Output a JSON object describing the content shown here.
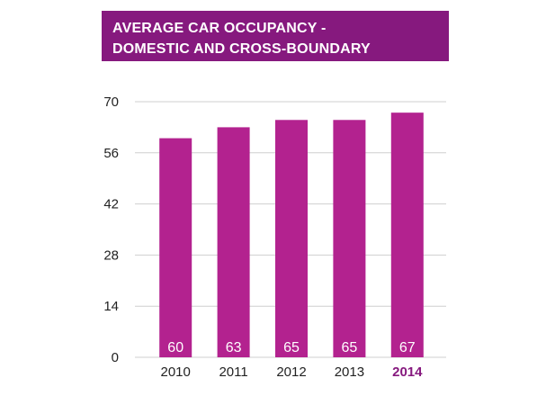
{
  "title_lines": [
    "AVERAGE CAR OCCUPANCY -",
    "DOMESTIC AND CROSS-BOUNDARY"
  ],
  "colors": {
    "banner": "#86197e",
    "bar": "#b3228f",
    "highlight_label": "#86197e",
    "grid": "#cfcfcf"
  },
  "chart_data": {
    "type": "bar",
    "title": "AVERAGE CAR OCCUPANCY - DOMESTIC AND CROSS-BOUNDARY",
    "categories": [
      "2010",
      "2011",
      "2012",
      "2013",
      "2014"
    ],
    "values": [
      60,
      63,
      65,
      65,
      67
    ],
    "data_labels": [
      "60",
      "63",
      "65",
      "65",
      "67"
    ],
    "highlight_category": "2014",
    "y_ticks": [
      0,
      14,
      28,
      42,
      56,
      70
    ],
    "ylim": [
      0,
      70
    ],
    "grid": true,
    "xlabel": "",
    "ylabel": ""
  }
}
